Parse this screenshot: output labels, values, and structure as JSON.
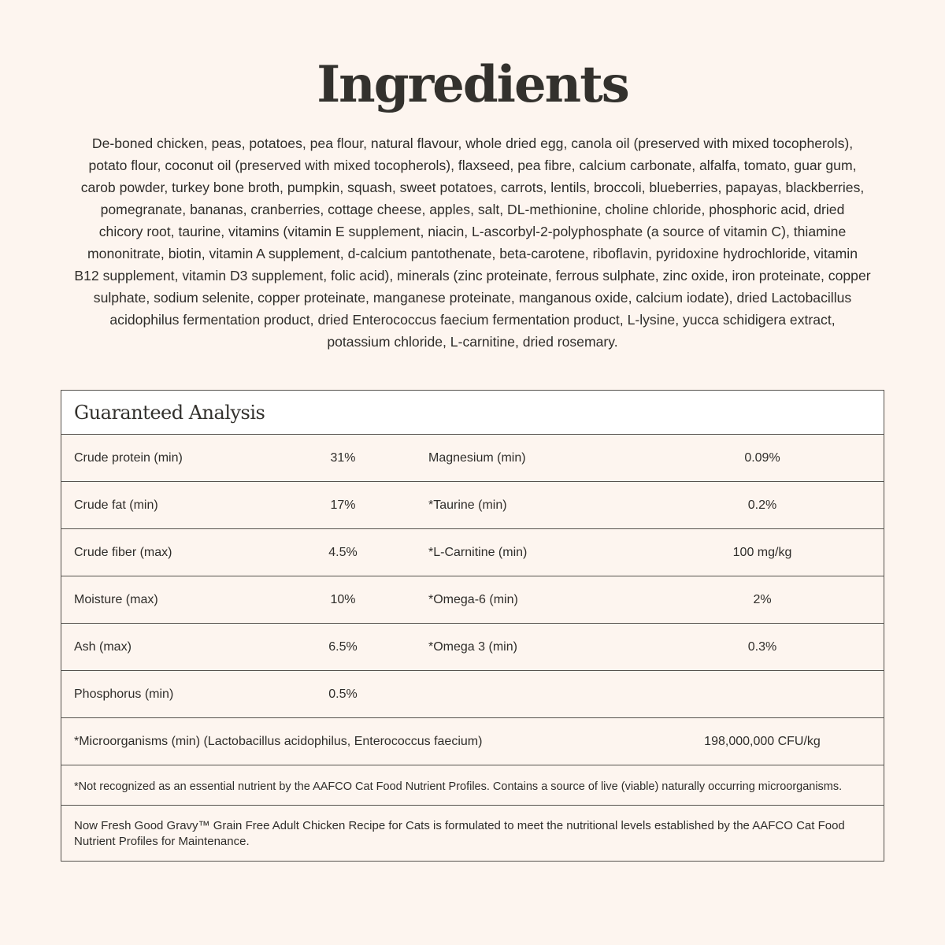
{
  "title": "Ingredients",
  "ingredients_lines": [
    "De-boned chicken, peas, potatoes, pea flour, natural flavour, whole dried egg, canola oil (preserved with mixed tocopherols),",
    "potato flour, coconut oil (preserved with mixed tocopherols), flaxseed, pea fibre, calcium carbonate, alfalfa, tomato, guar gum,",
    "carob powder, turkey bone broth, pumpkin, squash, sweet potatoes, carrots, lentils, broccoli, blueberries, papayas, blackberries,",
    "pomegranate, bananas, cranberries, cottage cheese, apples, salt, DL-methionine, choline chloride, phosphoric acid, dried",
    "chicory root, taurine, vitamins (vitamin E supplement, niacin, L-ascorbyl-2-polyphosphate (a source of vitamin C), thiamine",
    "mononitrate, biotin, vitamin A supplement, d-calcium pantothenate, beta-carotene, riboflavin, pyridoxine hydrochloride, vitamin",
    "B12 supplement, vitamin D3 supplement, folic acid), minerals (zinc proteinate, ferrous sulphate, zinc oxide, iron proteinate, copper",
    "sulphate, sodium selenite, copper proteinate, manganese proteinate, manganous oxide, calcium iodate), dried Lactobacillus",
    "acidophilus fermentation product, dried Enterococcus faecium fermentation product, L-lysine, yucca schidigera extract,",
    "potassium chloride, L-carnitine, dried rosemary."
  ],
  "analysis": {
    "title": "Guaranteed Analysis",
    "rows": [
      {
        "l1": "Crude protein (min)",
        "v1": "31%",
        "l2": "Magnesium (min)",
        "v2": "0.09%"
      },
      {
        "l1": "Crude fat (min)",
        "v1": "17%",
        "l2": "*Taurine (min)",
        "v2": "0.2%"
      },
      {
        "l1": "Crude fiber (max)",
        "v1": "4.5%",
        "l2": "*L-Carnitine (min)",
        "v2": "100 mg/kg"
      },
      {
        "l1": "Moisture (max)",
        "v1": "10%",
        "l2": "*Omega-6 (min)",
        "v2": "2%"
      },
      {
        "l1": "Ash (max)",
        "v1": "6.5%",
        "l2": "*Omega 3 (min)",
        "v2": "0.3%"
      },
      {
        "l1": "Phosphorus (min)",
        "v1": "0.5%",
        "l2": "",
        "v2": ""
      }
    ],
    "micro": {
      "label": "*Microorganisms (min) (Lactobacillus acidophilus, Enterococcus faecium)",
      "value": "198,000,000 CFU/kg"
    },
    "footnote": "*Not recognized as an essential nutrient by the AAFCO Cat Food Nutrient Profiles. Contains a source of live (viable) naturally occurring microorganisms.",
    "statement": "Now Fresh Good Gravy™ Grain Free Adult Chicken Recipe for Cats is formulated to meet the nutritional levels established by the AAFCO Cat Food Nutrient Profiles for Maintenance."
  }
}
